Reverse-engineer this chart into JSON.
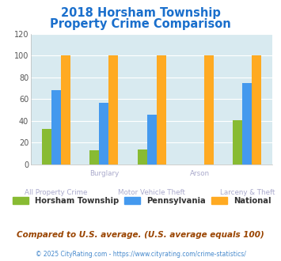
{
  "title_line1": "2018 Horsham Township",
  "title_line2": "Property Crime Comparison",
  "title_color": "#1a6fcc",
  "categories": [
    "All Property Crime",
    "Burglary",
    "Motor Vehicle Theft",
    "Arson",
    "Larceny & Theft"
  ],
  "horsham": [
    33,
    13,
    14,
    0,
    41
  ],
  "pennsylvania": [
    68,
    57,
    46,
    0,
    75
  ],
  "national": [
    100,
    100,
    100,
    100,
    100
  ],
  "horsham_color": "#88bb33",
  "pennsylvania_color": "#4499ee",
  "national_color": "#ffaa22",
  "ylim": [
    0,
    120
  ],
  "yticks": [
    0,
    20,
    40,
    60,
    80,
    100,
    120
  ],
  "plot_bg_color": "#d8eaf0",
  "grid_color": "#ffffff",
  "xlabel_top_color": "#aaaacc",
  "xlabel_bot_color": "#aaaacc",
  "footer_text": "Compared to U.S. average. (U.S. average equals 100)",
  "copyright_text": "© 2025 CityRating.com - https://www.cityrating.com/crime-statistics/",
  "legend_labels": [
    "Horsham Township",
    "Pennsylvania",
    "National"
  ],
  "bar_width": 0.2
}
